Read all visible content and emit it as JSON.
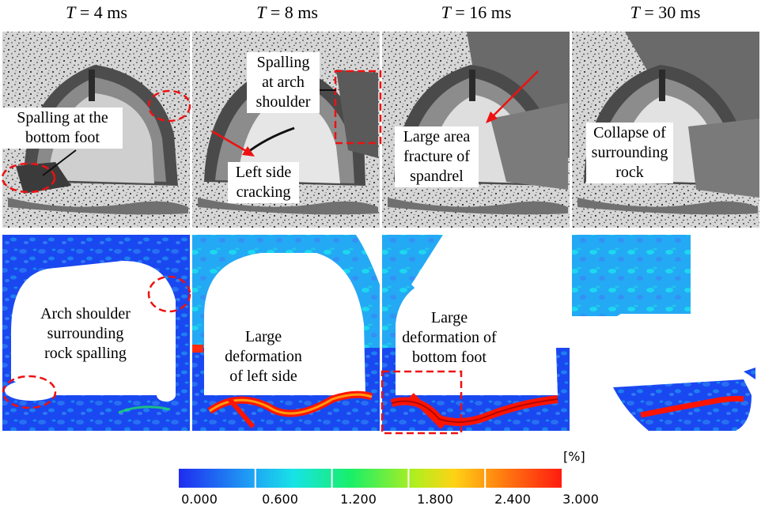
{
  "headers": [
    {
      "var": "T",
      "rest": " = 4 ms"
    },
    {
      "var": "T",
      "rest": " = 8 ms"
    },
    {
      "var": "T",
      "rest": " = 16 ms"
    },
    {
      "var": "T",
      "rest": " = 30 ms"
    }
  ],
  "photo_labels": {
    "p1": [
      "Spalling at the",
      "bottom foot"
    ],
    "p2a": [
      "Spalling",
      "at arch",
      "shoulder"
    ],
    "p2b": [
      "Left side",
      "cracking"
    ],
    "p3": [
      "Large area",
      "fracture of",
      "spandrel"
    ],
    "p4": [
      "Collapse of",
      "surrounding",
      "rock"
    ]
  },
  "strain_labels": {
    "s1": [
      "Arch shoulder",
      "surrounding",
      "rock spalling"
    ],
    "s2": [
      "Large",
      "deformation",
      "of left side"
    ],
    "s3": [
      "Large",
      "deformation of",
      "bottom foot"
    ]
  },
  "colorbar": {
    "unit": "[%]",
    "ticks": [
      "0.000",
      "0.600",
      "1.200",
      "1.800",
      "2.400",
      "3.000"
    ],
    "colors": [
      "#1f3cf0",
      "#16d8f0",
      "#19ef5a",
      "#c8ee1e",
      "#ffb015",
      "#ff1b0f"
    ]
  },
  "colors": {
    "annotation": "#ee1111",
    "strain_low": "#1a48f0",
    "strain_high": "#ff1400"
  }
}
